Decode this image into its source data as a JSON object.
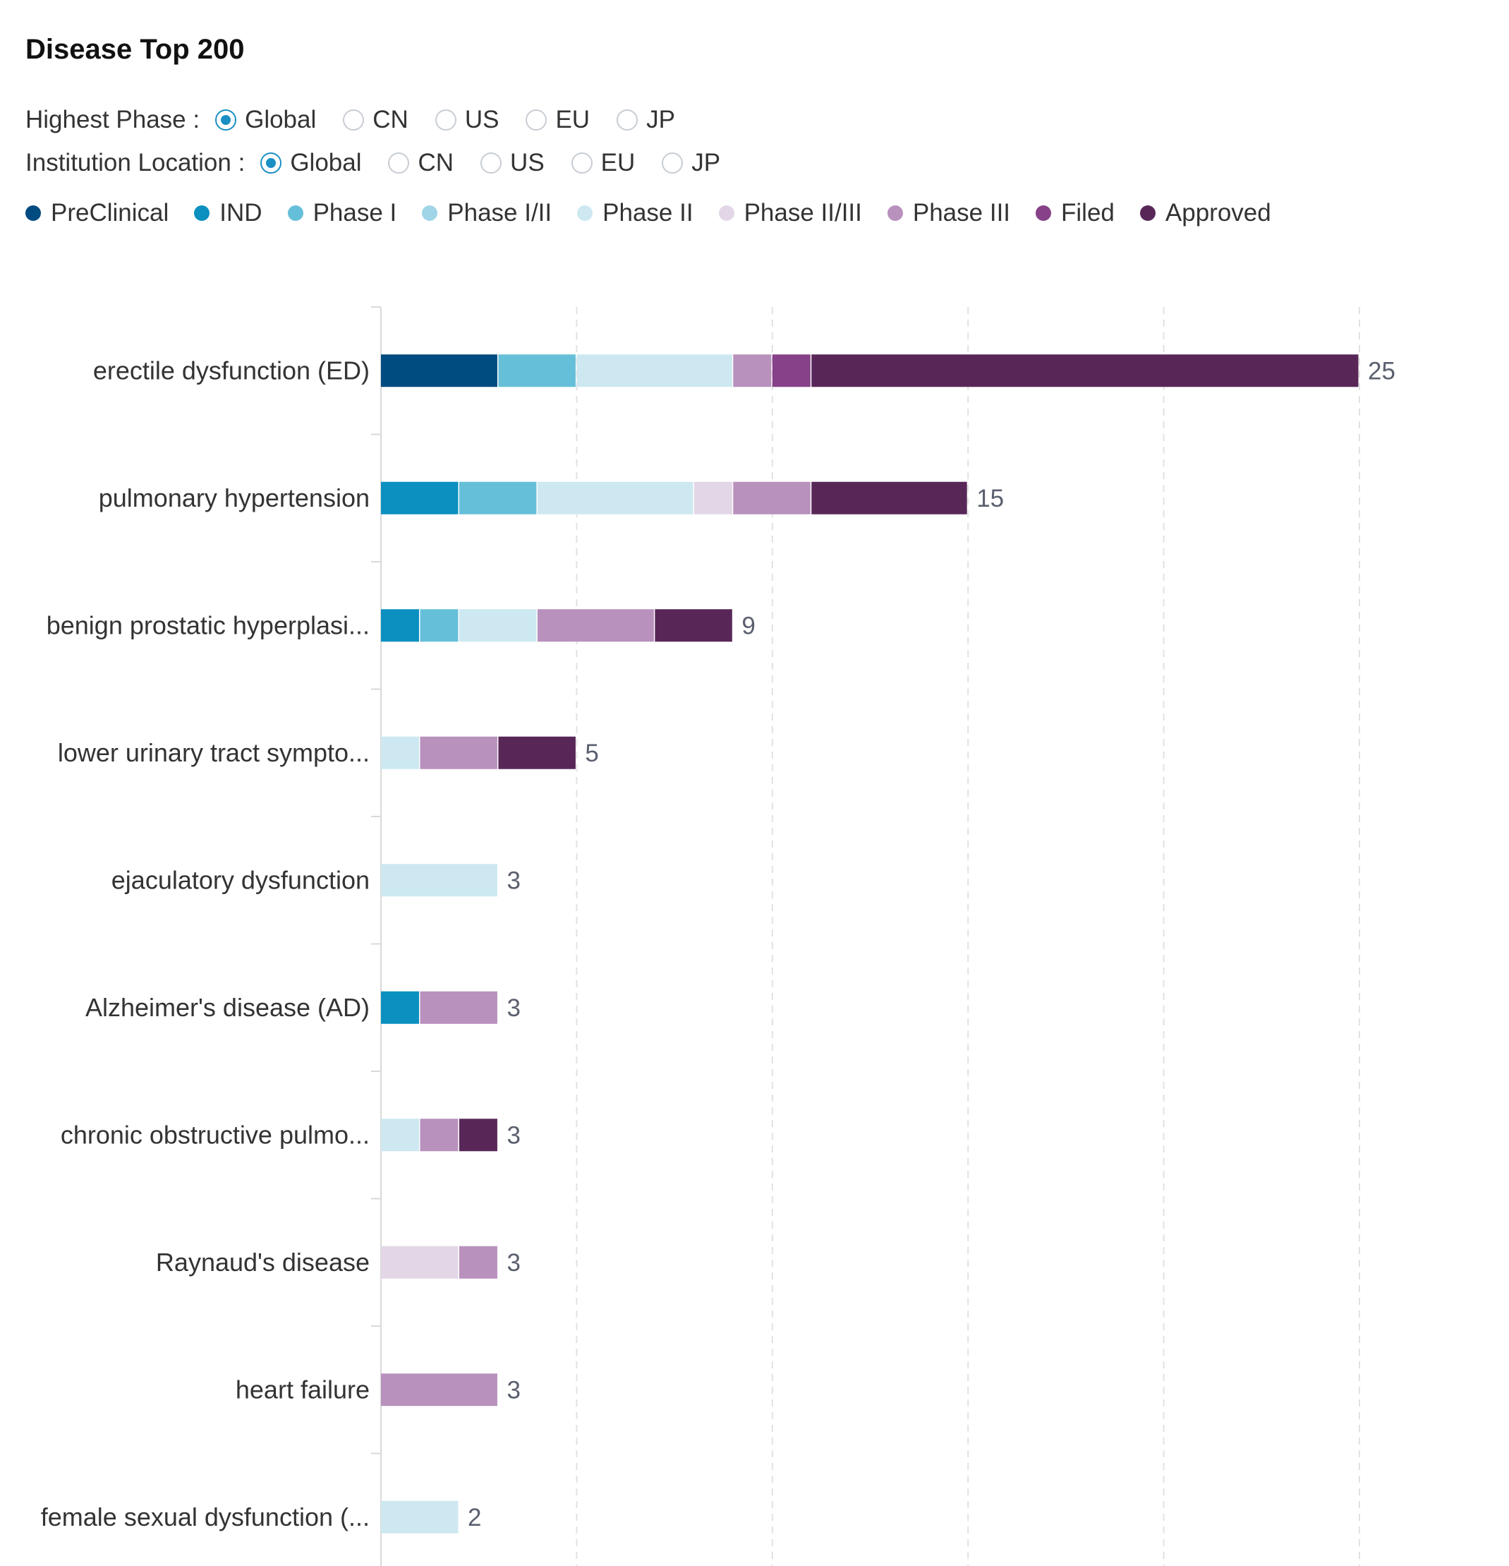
{
  "title": "Disease Top 200",
  "filters": {
    "highest_phase": {
      "label": "Highest Phase :",
      "options": [
        "Global",
        "CN",
        "US",
        "EU",
        "JP"
      ],
      "selected": "Global"
    },
    "institution_location": {
      "label": "Institution Location :",
      "options": [
        "Global",
        "CN",
        "US",
        "EU",
        "JP"
      ],
      "selected": "Global"
    }
  },
  "chart_data": {
    "type": "bar",
    "orientation": "horizontal",
    "stacked": true,
    "xlim": [
      0,
      25
    ],
    "grid": true,
    "legend_position": "top-left",
    "categories": [
      "erectile dysfunction (ED)",
      "pulmonary hypertension",
      "benign prostatic hyperplasi...",
      "lower urinary tract sympto...",
      "ejaculatory dysfunction",
      "Alzheimer's disease (AD)",
      "chronic obstructive pulmo...",
      "Raynaud's disease",
      "heart failure",
      "female sexual dysfunction (..."
    ],
    "totals": [
      25,
      15,
      9,
      5,
      3,
      3,
      3,
      3,
      3,
      2
    ],
    "series": [
      {
        "name": "PreClinical",
        "color": "#004b80",
        "values": [
          3,
          0,
          0,
          0,
          0,
          0,
          0,
          0,
          0,
          0
        ]
      },
      {
        "name": "IND",
        "color": "#0b90c0",
        "values": [
          0,
          2,
          1,
          0,
          0,
          1,
          0,
          0,
          0,
          0
        ]
      },
      {
        "name": "Phase I",
        "color": "#66bfd9",
        "values": [
          2,
          2,
          1,
          0,
          0,
          0,
          0,
          0,
          0,
          0
        ]
      },
      {
        "name": "Phase I/II",
        "color": "#9fd5e6",
        "values": [
          0,
          0,
          0,
          0,
          0,
          0,
          0,
          0,
          0,
          0
        ]
      },
      {
        "name": "Phase II",
        "color": "#cde8f1",
        "values": [
          4,
          4,
          2,
          1,
          3,
          0,
          1,
          0,
          0,
          2
        ]
      },
      {
        "name": "Phase II/III",
        "color": "#e3d7e7",
        "values": [
          0,
          1,
          0,
          0,
          0,
          0,
          0,
          2,
          0,
          0
        ]
      },
      {
        "name": "Phase III",
        "color": "#b891bd",
        "values": [
          1,
          2,
          3,
          2,
          0,
          2,
          1,
          1,
          3,
          0
        ]
      },
      {
        "name": "Filed",
        "color": "#864188",
        "values": [
          1,
          0,
          0,
          0,
          0,
          0,
          0,
          0,
          0,
          0
        ]
      },
      {
        "name": "Approved",
        "color": "#582758",
        "values": [
          14,
          4,
          2,
          2,
          0,
          0,
          1,
          0,
          0,
          0
        ]
      }
    ]
  }
}
